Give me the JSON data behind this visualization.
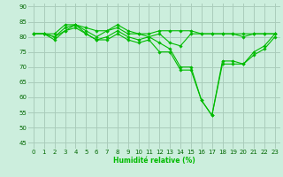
{
  "xlabel": "Humidité relative (%)",
  "background_color": "#cceedd",
  "grid_color": "#aaccbb",
  "line_color": "#00bb00",
  "xlim": [
    -0.5,
    23.5
  ],
  "ylim": [
    43,
    91
  ],
  "yticks": [
    45,
    50,
    55,
    60,
    65,
    70,
    75,
    80,
    85,
    90
  ],
  "xticks": [
    0,
    1,
    2,
    3,
    4,
    5,
    6,
    7,
    8,
    9,
    10,
    11,
    12,
    13,
    14,
    15,
    16,
    17,
    18,
    19,
    20,
    21,
    22,
    23
  ],
  "series": [
    [
      81,
      81,
      81,
      84,
      84,
      83,
      82,
      82,
      84,
      82,
      81,
      81,
      82,
      82,
      82,
      82,
      81,
      81,
      81,
      81,
      80,
      81,
      81,
      81
    ],
    [
      81,
      81,
      80,
      83,
      84,
      82,
      80,
      82,
      83,
      81,
      81,
      80,
      81,
      78,
      77,
      81,
      81,
      81,
      81,
      81,
      81,
      81,
      81,
      81
    ],
    [
      81,
      81,
      80,
      82,
      84,
      81,
      79,
      80,
      82,
      80,
      79,
      80,
      78,
      76,
      70,
      70,
      59,
      54,
      72,
      72,
      71,
      75,
      77,
      81
    ],
    [
      81,
      81,
      79,
      82,
      83,
      81,
      79,
      79,
      81,
      79,
      78,
      79,
      75,
      75,
      69,
      69,
      59,
      54,
      71,
      71,
      71,
      74,
      76,
      80
    ]
  ]
}
